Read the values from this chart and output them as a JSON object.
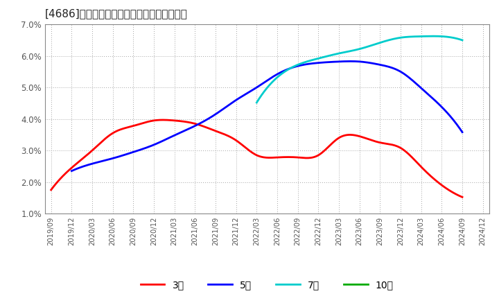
{
  "title_bracket": "[4686]",
  "title_text": "経常利益マージンの標準偏差の推移",
  "background_color": "#ffffff",
  "grid_color": "#999999",
  "legend_labels": [
    "3年",
    "5年",
    "7年",
    "10年"
  ],
  "legend_colors": [
    "#ff0000",
    "#0000ff",
    "#00cccc",
    "#00aa00"
  ],
  "ylim": [
    0.01,
    0.07
  ],
  "yticks": [
    0.01,
    0.02,
    0.03,
    0.04,
    0.05,
    0.06,
    0.07
  ],
  "series": {
    "3year": {
      "color": "#ff0000",
      "xs": [
        0,
        1,
        2,
        3,
        4,
        5,
        6,
        7,
        8,
        9,
        10,
        11,
        12,
        13,
        14,
        15,
        16,
        17,
        18,
        19,
        20
      ],
      "ys": [
        0.0175,
        0.0245,
        0.03,
        0.0355,
        0.0378,
        0.0395,
        0.0395,
        0.0385,
        0.0362,
        0.0332,
        0.0285,
        0.0278,
        0.0278,
        0.0285,
        0.034,
        0.0345,
        0.0325,
        0.0308,
        0.0248,
        0.019,
        0.0152
      ]
    },
    "5year": {
      "color": "#0000ff",
      "xs": [
        1,
        2,
        3,
        4,
        5,
        6,
        7,
        8,
        9,
        10,
        11,
        12,
        13,
        14,
        15,
        16,
        17,
        18,
        19,
        20
      ],
      "ys": [
        0.0235,
        0.0258,
        0.0275,
        0.0295,
        0.0318,
        0.0348,
        0.0378,
        0.0415,
        0.046,
        0.05,
        0.0542,
        0.0568,
        0.0578,
        0.0582,
        0.0582,
        0.0572,
        0.055,
        0.0498,
        0.0438,
        0.0358
      ]
    },
    "7year": {
      "color": "#00cccc",
      "xs": [
        10,
        11,
        12,
        13,
        14,
        15,
        16,
        17,
        18,
        19,
        20
      ],
      "ys": [
        0.0452,
        0.0532,
        0.0572,
        0.0592,
        0.0608,
        0.0622,
        0.0642,
        0.0658,
        0.0662,
        0.0662,
        0.065
      ]
    },
    "10year": {
      "color": "#00aa00",
      "xs": [],
      "ys": []
    }
  },
  "xtick_labels": [
    "2019/09",
    "2019/12",
    "2020/03",
    "2020/06",
    "2020/09",
    "2020/12",
    "2021/03",
    "2021/06",
    "2021/09",
    "2021/12",
    "2022/03",
    "2022/06",
    "2022/09",
    "2022/12",
    "2023/03",
    "2023/06",
    "2023/09",
    "2023/12",
    "2024/03",
    "2024/06",
    "2024/09",
    "2024/12"
  ]
}
